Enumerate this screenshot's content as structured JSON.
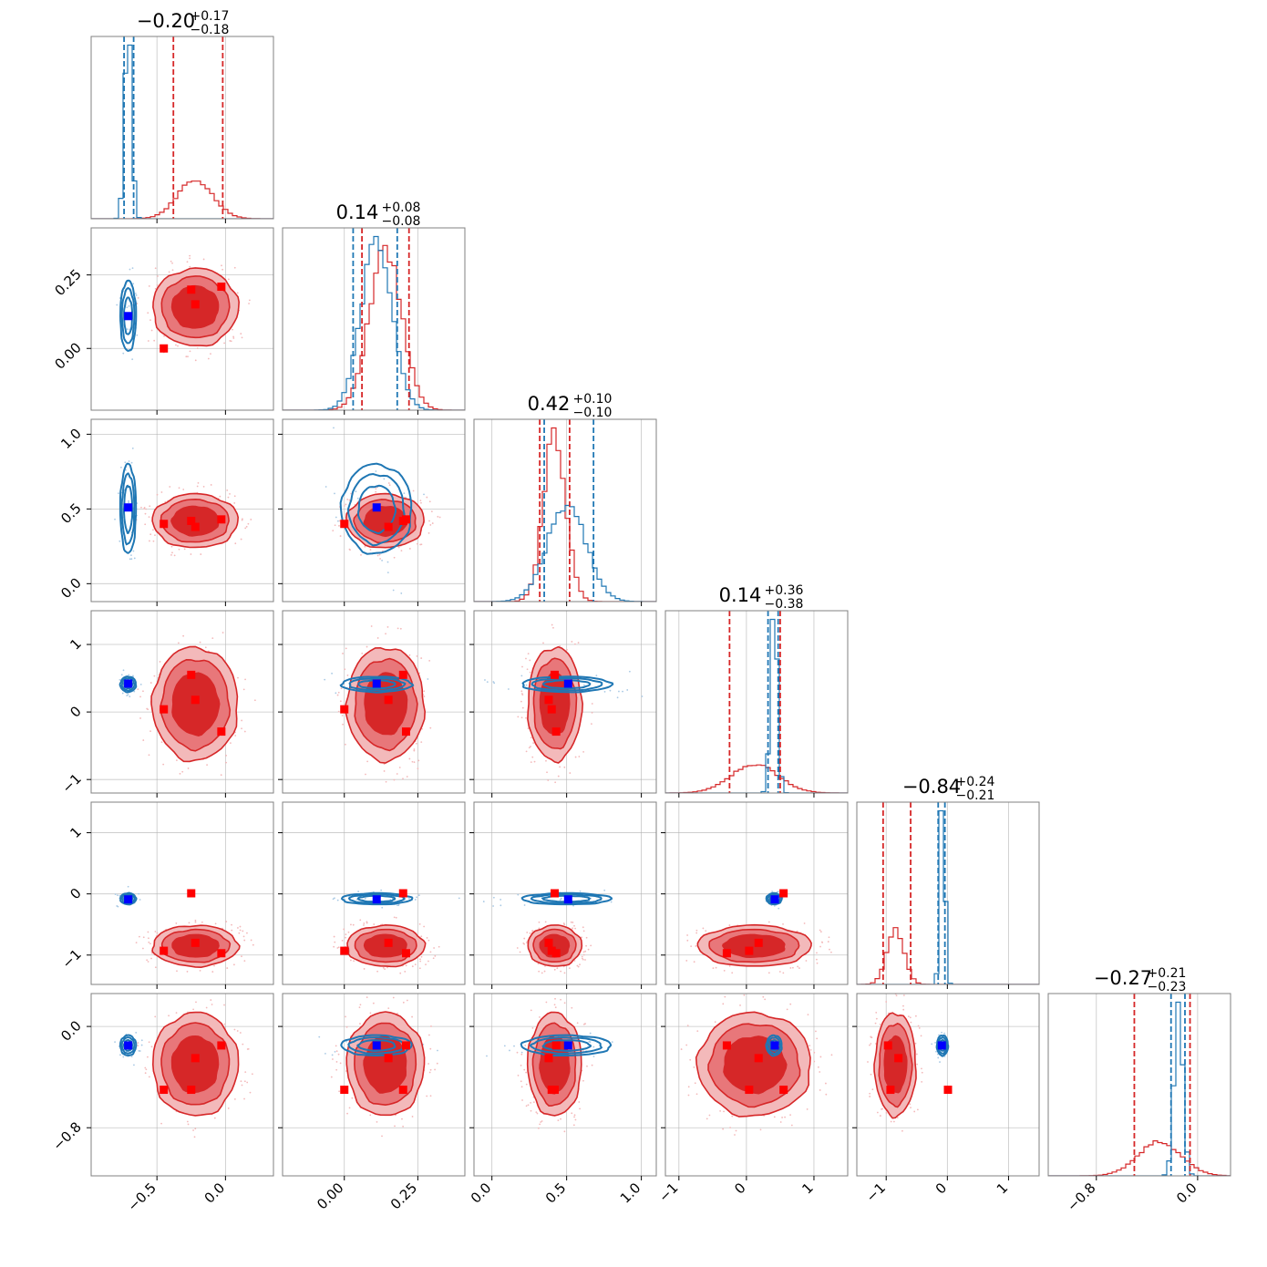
{
  "colors": {
    "red_dark": "#d62728",
    "red_mid": "#e8777a",
    "red_light": "#f3b9ba",
    "blue": "#1f77b4",
    "marker_red": "#ff0000",
    "marker_blue": "#0000ff"
  },
  "chart_data": {
    "type": "corner",
    "n_params": 6,
    "params": [
      {
        "title": {
          "median": "−0.20",
          "plus": "+0.17",
          "minus": "−0.18"
        },
        "range": [
          -0.98,
          0.35
        ],
        "ticks": [
          -0.5,
          0.0
        ],
        "tick_labels": [
          "−0.5",
          "0.0"
        ],
        "red": {
          "mean": -0.22,
          "sd": 0.13,
          "q": [
            -0.38,
            -0.02
          ]
        },
        "blue": {
          "mean": -0.71,
          "sd": 0.025,
          "q": [
            -0.74,
            -0.67
          ]
        },
        "red_markers": [
          -0.45,
          -0.25,
          -0.22,
          -0.03
        ],
        "blue_marker": -0.71
      },
      {
        "title": {
          "median": "0.14",
          "plus": "+0.08",
          "minus": "−0.08"
        },
        "range": [
          -0.21,
          0.41
        ],
        "ticks": [
          0.0,
          0.25
        ],
        "tick_labels": [
          "0.00",
          "0.25"
        ],
        "red": {
          "mean": 0.14,
          "sd": 0.055,
          "q": [
            0.06,
            0.22
          ]
        },
        "blue": {
          "mean": 0.11,
          "sd": 0.052,
          "q": [
            0.03,
            0.18
          ]
        },
        "red_markers": [
          0.0,
          0.2,
          0.15,
          0.21
        ],
        "blue_marker": 0.11
      },
      {
        "title": {
          "median": "0.42",
          "plus": "+0.10",
          "minus": "−0.10"
        },
        "range": [
          -0.12,
          1.1
        ],
        "ticks": [
          0.0,
          0.5,
          1.0
        ],
        "tick_labels": [
          "0.0",
          "0.5",
          "1.0"
        ],
        "red": {
          "mean": 0.42,
          "sd": 0.075,
          "q": [
            0.32,
            0.52
          ]
        },
        "blue": {
          "mean": 0.5,
          "sd": 0.13,
          "q": [
            0.35,
            0.68
          ]
        },
        "red_markers": [
          0.4,
          0.42,
          0.38,
          0.43
        ],
        "blue_marker": 0.51
      },
      {
        "title": {
          "median": "0.14",
          "plus": "+0.36",
          "minus": "−0.38"
        },
        "range": [
          -1.2,
          1.5
        ],
        "ticks": [
          -1,
          0,
          1
        ],
        "tick_labels": [
          "−1",
          "0",
          "1"
        ],
        "red": {
          "mean": 0.12,
          "sd": 0.35,
          "q": [
            -0.25,
            0.5
          ]
        },
        "blue": {
          "mean": 0.41,
          "sd": 0.05,
          "q": [
            0.32,
            0.47
          ]
        },
        "red_markers": [
          0.04,
          0.55,
          0.18,
          -0.29
        ],
        "blue_marker": 0.42
      },
      {
        "title": {
          "median": "−0.84",
          "plus": "+0.24",
          "minus": "−0.21"
        },
        "range": [
          -1.48,
          1.5
        ],
        "ticks": [
          -1,
          0,
          1
        ],
        "tick_labels": [
          "−1",
          "0",
          "1"
        ],
        "red": {
          "mean": -0.85,
          "sd": 0.14,
          "q": [
            -1.05,
            -0.6
          ]
        },
        "blue": {
          "mean": -0.08,
          "sd": 0.04,
          "q": [
            -0.15,
            -0.04
          ]
        },
        "red_markers": [
          -0.93,
          0.01,
          -0.8,
          -0.97
        ],
        "blue_marker": -0.09
      },
      {
        "title": {
          "median": "−0.27",
          "plus": "+0.21",
          "minus": "−0.23"
        },
        "range": [
          -1.18,
          0.26
        ],
        "ticks": [
          -0.8,
          0.0
        ],
        "tick_labels": [
          "−0.8",
          "0.0"
        ],
        "red": {
          "mean": -0.3,
          "sd": 0.17,
          "q": [
            -0.5,
            -0.06
          ]
        },
        "blue": {
          "mean": -0.15,
          "sd": 0.035,
          "q": [
            -0.21,
            -0.1
          ]
        },
        "red_markers": [
          -0.5,
          -0.5,
          -0.25,
          -0.15
        ],
        "blue_marker": -0.15
      }
    ]
  }
}
